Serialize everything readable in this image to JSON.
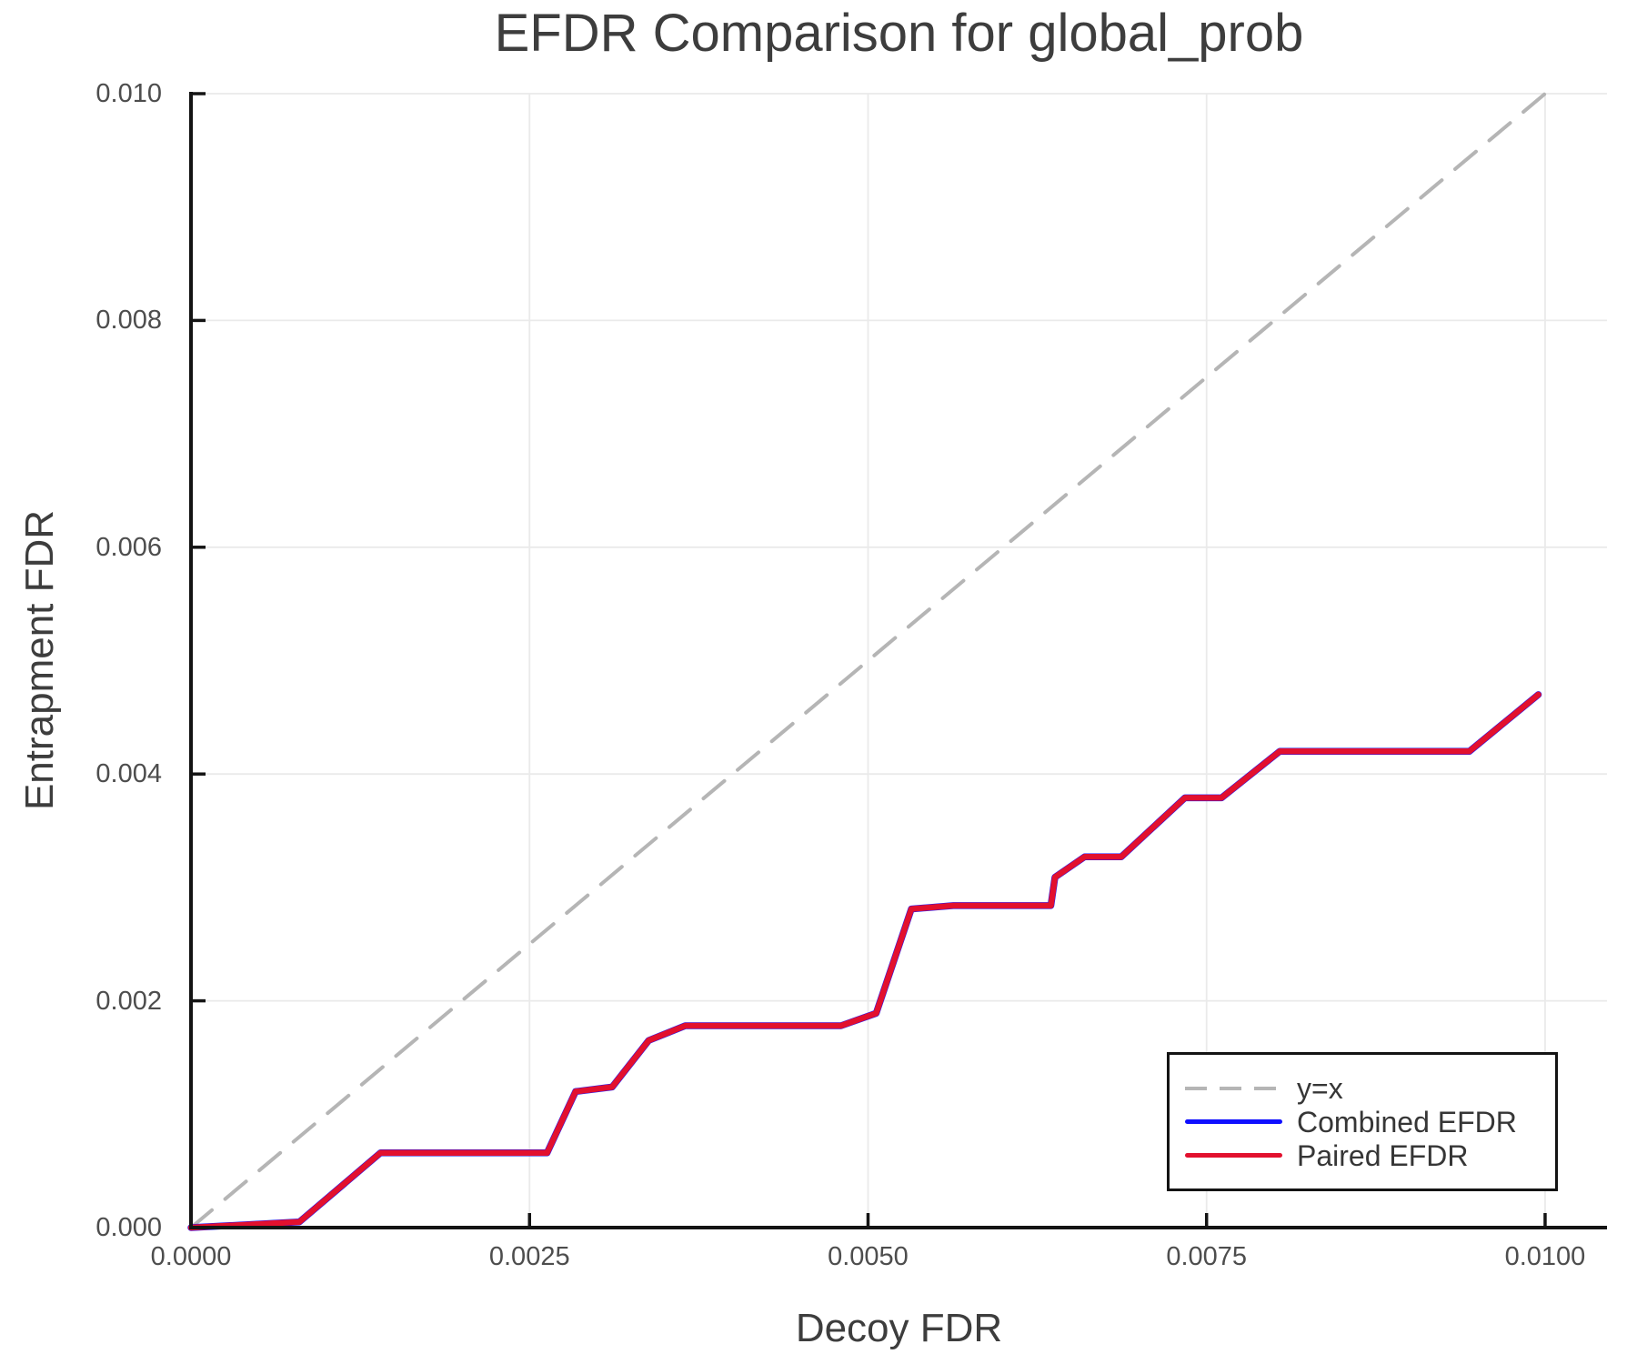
{
  "chart_data": {
    "type": "line",
    "title": "EFDR Comparison for global_prob",
    "xlabel": "Decoy FDR",
    "ylabel": "Entrapment FDR",
    "xlim": [
      0,
      0.010457
    ],
    "ylim": [
      0,
      0.01
    ],
    "grid": true,
    "legend_position": "lower right",
    "x_ticks": [
      {
        "value": 0.0,
        "label": "0.0000"
      },
      {
        "value": 0.0025,
        "label": "0.0025"
      },
      {
        "value": 0.005,
        "label": "0.0050"
      },
      {
        "value": 0.0075,
        "label": "0.0075"
      },
      {
        "value": 0.01,
        "label": "0.0100"
      }
    ],
    "y_ticks": [
      {
        "value": 0.0,
        "label": "0.000"
      },
      {
        "value": 0.002,
        "label": "0.002"
      },
      {
        "value": 0.004,
        "label": "0.004"
      },
      {
        "value": 0.006,
        "label": "0.006"
      },
      {
        "value": 0.008,
        "label": "0.008"
      },
      {
        "value": 0.01,
        "label": "0.010"
      }
    ],
    "series": [
      {
        "name": "y=x",
        "color": "#b5b5b5",
        "style": "dashed",
        "width": 4,
        "x": [
          0.0,
          0.01
        ],
        "y": [
          0.0,
          0.01
        ]
      },
      {
        "name": "Combined EFDR",
        "color": "#0f0fff",
        "style": "solid",
        "width": 7.5,
        "x": [
          0.0,
          0.0008,
          0.0014,
          0.00263,
          0.00284,
          0.00311,
          0.00338,
          0.00365,
          0.0048,
          0.00506,
          0.00532,
          0.00563,
          0.00635,
          0.00638,
          0.0066,
          0.00687,
          0.00734,
          0.00761,
          0.00804,
          0.00944,
          0.00995
        ],
        "y": [
          0.0,
          5e-05,
          0.00066,
          0.00066,
          0.0012,
          0.00124,
          0.00165,
          0.00178,
          0.00178,
          0.00189,
          0.00281,
          0.00284,
          0.00284,
          0.00309,
          0.00327,
          0.00327,
          0.00379,
          0.00379,
          0.0042,
          0.0042,
          0.0047
        ]
      },
      {
        "name": "Paired EFDR",
        "color": "#e2102e",
        "style": "solid",
        "width": 6.5,
        "x": [
          0.0,
          0.0008,
          0.0014,
          0.00263,
          0.00284,
          0.00311,
          0.00338,
          0.00365,
          0.0048,
          0.00506,
          0.00532,
          0.00563,
          0.00635,
          0.00638,
          0.0066,
          0.00687,
          0.00734,
          0.00761,
          0.00804,
          0.00944,
          0.00995
        ],
        "y": [
          0.0,
          5e-05,
          0.00066,
          0.00066,
          0.0012,
          0.00124,
          0.00165,
          0.00178,
          0.00178,
          0.00189,
          0.00281,
          0.00284,
          0.00284,
          0.00309,
          0.00327,
          0.00327,
          0.00379,
          0.00379,
          0.0042,
          0.0042,
          0.0047
        ]
      }
    ]
  },
  "colors": {
    "background": "#ffffff",
    "grid": "#eaeaea",
    "spine": "#141414",
    "title_text": "#3d3d3d",
    "tick_text": "#4d4d4d",
    "label_text": "#3d3d3d",
    "legend_text": "#363636",
    "legend_border": "#141414"
  }
}
